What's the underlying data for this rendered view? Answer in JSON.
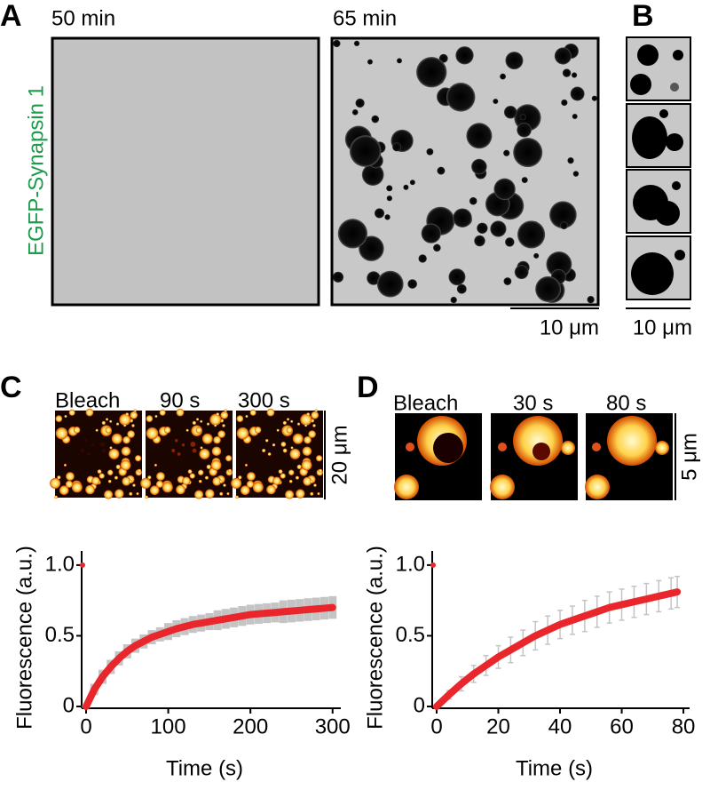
{
  "panels": {
    "A": {
      "label": "A",
      "times": [
        "50 min",
        "65 min"
      ],
      "ylabel": "EGFP-Synapsin 1",
      "scale": "10 μm"
    },
    "B": {
      "label": "B",
      "scale": "10 μm"
    },
    "C": {
      "label": "C",
      "frames": [
        "Bleach",
        "90 s",
        "300 s"
      ],
      "scale": "20 μm"
    },
    "D": {
      "label": "D",
      "frames": [
        "Bleach",
        "30 s",
        "80 s"
      ],
      "scale": "5 μm"
    }
  },
  "chart_data": [
    {
      "type": "line",
      "xlabel": "Time (s)",
      "ylabel": "Fluorescence (a.u.)",
      "xlim": [
        0,
        310
      ],
      "ylim": [
        0,
        1.1
      ],
      "xticks": [
        0,
        100,
        200,
        300
      ],
      "yticks": [
        0,
        0.5,
        {
          "value": 1,
          "label": "1.0"
        }
      ],
      "series": [
        {
          "color": "#e8262b",
          "error_color": "#c4c4c4",
          "marker": "line",
          "x": [
            0,
            10,
            20,
            30,
            40,
            50,
            60,
            70,
            80,
            90,
            100,
            110,
            120,
            130,
            140,
            150,
            160,
            170,
            180,
            190,
            200,
            210,
            220,
            230,
            240,
            250,
            260,
            270,
            280,
            290,
            300
          ],
          "values": [
            0,
            0.12,
            0.21,
            0.28,
            0.34,
            0.39,
            0.43,
            0.46,
            0.49,
            0.51,
            0.53,
            0.55,
            0.565,
            0.58,
            0.59,
            0.6,
            0.61,
            0.62,
            0.63,
            0.64,
            0.65,
            0.655,
            0.66,
            0.665,
            0.67,
            0.675,
            0.68,
            0.685,
            0.69,
            0.695,
            0.7
          ],
          "errors": [
            0.01,
            0.04,
            0.05,
            0.05,
            0.05,
            0.05,
            0.05,
            0.05,
            0.05,
            0.05,
            0.06,
            0.06,
            0.06,
            0.06,
            0.06,
            0.06,
            0.07,
            0.07,
            0.07,
            0.07,
            0.07,
            0.07,
            0.07,
            0.07,
            0.08,
            0.08,
            0.08,
            0.08,
            0.08,
            0.08,
            0.08
          ]
        },
        {
          "color": "#e8262b",
          "marker": "dot",
          "x": [
            0
          ],
          "values": [
            1
          ]
        }
      ]
    },
    {
      "type": "line",
      "xlabel": "Time (s)",
      "ylabel": "Fluorescence (a.u.)",
      "xlim": [
        0,
        82
      ],
      "ylim": [
        0,
        1.1
      ],
      "xticks": [
        0,
        20,
        40,
        60,
        80
      ],
      "yticks": [
        0,
        0.5,
        {
          "value": 1,
          "label": "1.0"
        }
      ],
      "series": [
        {
          "color": "#e8262b",
          "error_color": "#c4c4c4",
          "marker": "line",
          "x": [
            0,
            4,
            8,
            12,
            16,
            20,
            24,
            28,
            32,
            36,
            40,
            44,
            48,
            52,
            56,
            60,
            64,
            68,
            72,
            76,
            78
          ],
          "values": [
            0,
            0.083,
            0.16,
            0.23,
            0.29,
            0.35,
            0.4,
            0.45,
            0.5,
            0.54,
            0.58,
            0.61,
            0.64,
            0.67,
            0.7,
            0.72,
            0.74,
            0.76,
            0.78,
            0.8,
            0.81
          ],
          "errors": [
            0.01,
            0.03,
            0.05,
            0.06,
            0.07,
            0.08,
            0.09,
            0.09,
            0.1,
            0.1,
            0.1,
            0.1,
            0.11,
            0.11,
            0.11,
            0.11,
            0.11,
            0.11,
            0.11,
            0.11,
            0.11
          ]
        },
        {
          "color": "#e8262b",
          "marker": "dot",
          "x": [
            0
          ],
          "values": [
            1
          ]
        }
      ]
    }
  ]
}
